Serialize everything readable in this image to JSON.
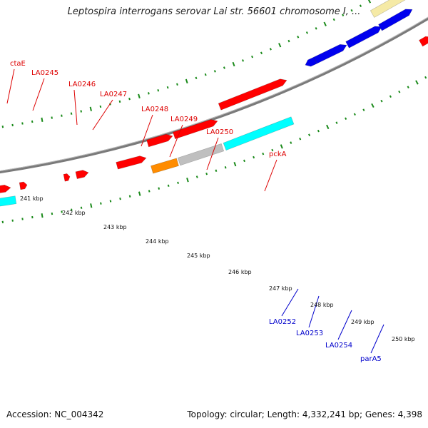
{
  "header": {
    "title": "Leptospira interrogans serovar Lai str. 56601 chromosome I, ..."
  },
  "footer": {
    "accession": "Accession: NC_004342",
    "summary": "Topology: circular; Length: 4,332,241 bp; Genes: 4,398"
  },
  "colors": {
    "forward_label": "#dd0000",
    "reverse_label": "#0000cc",
    "backbone": "#888888",
    "tick": "#1a8a1a",
    "cyan": "#00ffff",
    "red": "#ff0000",
    "orange": "#ff8c00",
    "gray": "#bfbfbf",
    "blue": "#0000ee",
    "khaki": "#f5eaa6"
  },
  "scale_labels": [
    "241 kbp",
    "242 kbp",
    "243 kbp",
    "244 kbp",
    "245 kbp",
    "246 kbp",
    "247 kbp",
    "248 kbp",
    "249 kbp",
    "250 kbp"
  ],
  "gene_labels": [
    {
      "text": "ctaE",
      "strand": "forward"
    },
    {
      "text": "LA0245",
      "strand": "forward"
    },
    {
      "text": "LA0246",
      "strand": "forward"
    },
    {
      "text": "LA0247",
      "strand": "forward"
    },
    {
      "text": "LA0248",
      "strand": "forward"
    },
    {
      "text": "LA0249",
      "strand": "forward"
    },
    {
      "text": "LA0250",
      "strand": "forward"
    },
    {
      "text": "pckA",
      "strand": "forward"
    },
    {
      "text": "LA0252",
      "strand": "reverse"
    },
    {
      "text": "LA0253",
      "strand": "reverse"
    },
    {
      "text": "LA0254",
      "strand": "reverse"
    },
    {
      "text": "parA5",
      "strand": "reverse"
    }
  ]
}
